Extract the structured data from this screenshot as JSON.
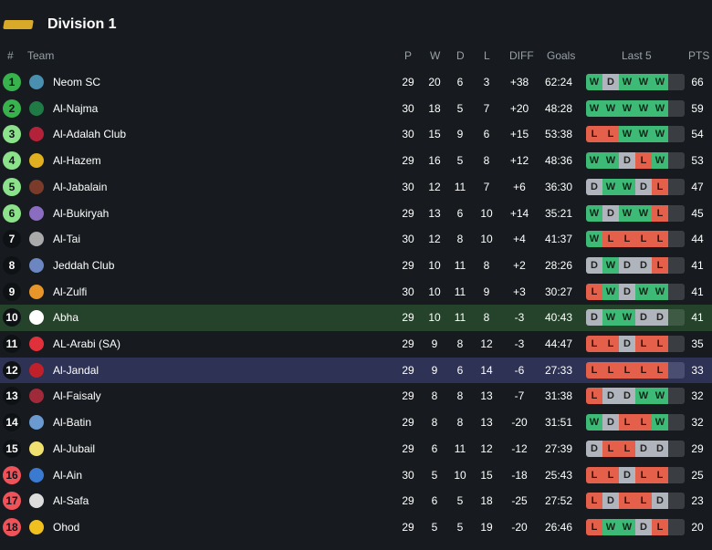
{
  "header": {
    "title": "Division 1"
  },
  "columns": {
    "rank": "#",
    "team": "Team",
    "p": "P",
    "w": "W",
    "d": "D",
    "l": "L",
    "diff": "DIFF",
    "goals": "Goals",
    "last5": "Last 5",
    "pts": "PTS"
  },
  "colors": {
    "promote": "#37b24d",
    "playoff": "#8be28b",
    "relegate": "#f0525a",
    "win": "#3dba75",
    "draw": "#b0b4bc",
    "loss": "#e5604a"
  },
  "rows": [
    {
      "rank": "1",
      "team": "Neom SC",
      "p": "29",
      "w": "20",
      "d": "6",
      "l": "3",
      "diff": "+38",
      "goals": "62:24",
      "last5": [
        "W",
        "D",
        "W",
        "W",
        "W"
      ],
      "pts": "66"
    },
    {
      "rank": "2",
      "team": "Al-Najma",
      "p": "30",
      "w": "18",
      "d": "5",
      "l": "7",
      "diff": "+20",
      "goals": "48:28",
      "last5": [
        "W",
        "W",
        "W",
        "W",
        "W"
      ],
      "pts": "59"
    },
    {
      "rank": "3",
      "team": "Al-Adalah Club",
      "p": "30",
      "w": "15",
      "d": "9",
      "l": "6",
      "diff": "+15",
      "goals": "53:38",
      "last5": [
        "L",
        "L",
        "W",
        "W",
        "W"
      ],
      "pts": "54"
    },
    {
      "rank": "4",
      "team": "Al-Hazem",
      "p": "29",
      "w": "16",
      "d": "5",
      "l": "8",
      "diff": "+12",
      "goals": "48:36",
      "last5": [
        "W",
        "W",
        "D",
        "L",
        "W"
      ],
      "pts": "53"
    },
    {
      "rank": "5",
      "team": "Al-Jabalain",
      "p": "30",
      "w": "12",
      "d": "11",
      "l": "7",
      "diff": "+6",
      "goals": "36:30",
      "last5": [
        "D",
        "W",
        "W",
        "D",
        "L"
      ],
      "pts": "47"
    },
    {
      "rank": "6",
      "team": "Al-Bukiryah",
      "p": "29",
      "w": "13",
      "d": "6",
      "l": "10",
      "diff": "+14",
      "goals": "35:21",
      "last5": [
        "W",
        "D",
        "W",
        "W",
        "L"
      ],
      "pts": "45"
    },
    {
      "rank": "7",
      "team": "Al-Tai",
      "p": "30",
      "w": "12",
      "d": "8",
      "l": "10",
      "diff": "+4",
      "goals": "41:37",
      "last5": [
        "W",
        "L",
        "L",
        "L",
        "L"
      ],
      "pts": "44"
    },
    {
      "rank": "8",
      "team": "Jeddah Club",
      "p": "29",
      "w": "10",
      "d": "11",
      "l": "8",
      "diff": "+2",
      "goals": "28:26",
      "last5": [
        "D",
        "W",
        "D",
        "D",
        "L"
      ],
      "pts": "41"
    },
    {
      "rank": "9",
      "team": "Al-Zulfi",
      "p": "30",
      "w": "10",
      "d": "11",
      "l": "9",
      "diff": "+3",
      "goals": "30:27",
      "last5": [
        "L",
        "W",
        "D",
        "W",
        "W"
      ],
      "pts": "41"
    },
    {
      "rank": "10",
      "team": "Abha",
      "p": "29",
      "w": "10",
      "d": "11",
      "l": "8",
      "diff": "-3",
      "goals": "40:43",
      "last5": [
        "D",
        "W",
        "W",
        "D",
        "D"
      ],
      "pts": "41"
    },
    {
      "rank": "11",
      "team": "AL-Arabi (SA)",
      "p": "29",
      "w": "9",
      "d": "8",
      "l": "12",
      "diff": "-3",
      "goals": "44:47",
      "last5": [
        "L",
        "L",
        "D",
        "L",
        "L"
      ],
      "pts": "35"
    },
    {
      "rank": "12",
      "team": "Al-Jandal",
      "p": "29",
      "w": "9",
      "d": "6",
      "l": "14",
      "diff": "-6",
      "goals": "27:33",
      "last5": [
        "L",
        "L",
        "L",
        "L",
        "L"
      ],
      "pts": "33"
    },
    {
      "rank": "13",
      "team": "Al-Faisaly",
      "p": "29",
      "w": "8",
      "d": "8",
      "l": "13",
      "diff": "-7",
      "goals": "31:38",
      "last5": [
        "L",
        "D",
        "D",
        "W",
        "W"
      ],
      "pts": "32"
    },
    {
      "rank": "14",
      "team": "Al-Batin",
      "p": "29",
      "w": "8",
      "d": "8",
      "l": "13",
      "diff": "-20",
      "goals": "31:51",
      "last5": [
        "W",
        "D",
        "L",
        "L",
        "W"
      ],
      "pts": "32"
    },
    {
      "rank": "15",
      "team": "Al-Jubail",
      "p": "29",
      "w": "6",
      "d": "11",
      "l": "12",
      "diff": "-12",
      "goals": "27:39",
      "last5": [
        "D",
        "L",
        "L",
        "D",
        "D"
      ],
      "pts": "29"
    },
    {
      "rank": "16",
      "team": "Al-Ain",
      "p": "30",
      "w": "5",
      "d": "10",
      "l": "15",
      "diff": "-18",
      "goals": "25:43",
      "last5": [
        "L",
        "L",
        "D",
        "L",
        "L"
      ],
      "pts": "25"
    },
    {
      "rank": "17",
      "team": "Al-Safa",
      "p": "29",
      "w": "6",
      "d": "5",
      "l": "18",
      "diff": "-25",
      "goals": "27:52",
      "last5": [
        "L",
        "D",
        "L",
        "L",
        "D"
      ],
      "pts": "23"
    },
    {
      "rank": "18",
      "team": "Ohod",
      "p": "29",
      "w": "5",
      "d": "5",
      "l": "19",
      "diff": "-20",
      "goals": "26:46",
      "last5": [
        "L",
        "W",
        "W",
        "D",
        "L"
      ],
      "pts": "20"
    }
  ]
}
